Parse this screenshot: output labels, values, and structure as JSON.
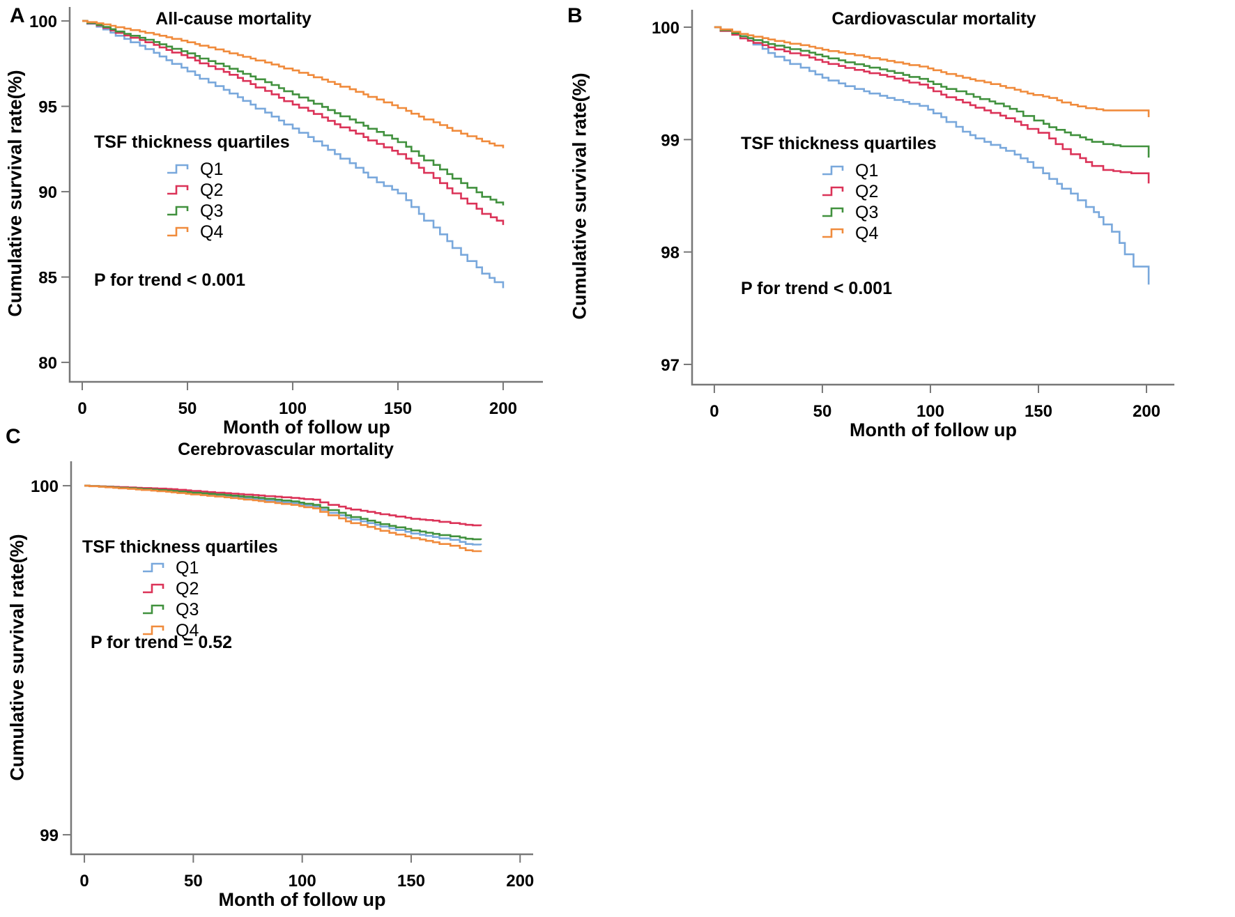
{
  "figure": {
    "background": "#ffffff",
    "axis_color": "#777777",
    "text_color": "#000000"
  },
  "chart_data": [
    {
      "panel_label": "A",
      "type": "line",
      "step": true,
      "title": "All-cause mortality",
      "xlabel": "Month of follow up",
      "ylabel": "Cumulative survival rate(%)",
      "legend_title": "TSF thickness quartiles",
      "legend_position": "center-left",
      "p_text": "P for trend < 0.001",
      "grid": false,
      "xlim": [
        -5.96,
        218.9
      ],
      "xticks": [
        0,
        50,
        100,
        150,
        200
      ],
      "ylim": [
        78.86,
        100.82
      ],
      "yticks": [
        80,
        85,
        90,
        95,
        100
      ],
      "series": [
        {
          "name": "Q1",
          "color": "#79A8DC",
          "points": [
            [
              0,
              100
            ],
            [
              10,
              99.5
            ],
            [
              20,
              98.95
            ],
            [
              30,
              98.35
            ],
            [
              40,
              97.7
            ],
            [
              50,
              97.05
            ],
            [
              60,
              96.4
            ],
            [
              70,
              95.75
            ],
            [
              80,
              95.1
            ],
            [
              90,
              94.4
            ],
            [
              100,
              93.7
            ],
            [
              110,
              92.95
            ],
            [
              120,
              92.2
            ],
            [
              130,
              91.4
            ],
            [
              140,
              90.55
            ],
            [
              150,
              89.9
            ],
            [
              160,
              88.7
            ],
            [
              170,
              87.5
            ],
            [
              180,
              86.3
            ],
            [
              190,
              85.2
            ],
            [
              196,
              84.7
            ],
            [
              200,
              84.35
            ]
          ]
        },
        {
          "name": "Q2",
          "color": "#DB3358",
          "points": [
            [
              0,
              100
            ],
            [
              10,
              99.6
            ],
            [
              20,
              99.15
            ],
            [
              30,
              98.75
            ],
            [
              40,
              98.3
            ],
            [
              50,
              97.85
            ],
            [
              60,
              97.35
            ],
            [
              70,
              96.85
            ],
            [
              80,
              96.3
            ],
            [
              90,
              95.7
            ],
            [
              100,
              95.1
            ],
            [
              110,
              94.55
            ],
            [
              120,
              93.95
            ],
            [
              130,
              93.4
            ],
            [
              140,
              92.8
            ],
            [
              150,
              92.2
            ],
            [
              160,
              91.4
            ],
            [
              170,
              90.5
            ],
            [
              180,
              89.6
            ],
            [
              190,
              88.7
            ],
            [
              197,
              88.3
            ],
            [
              199,
              88.3
            ],
            [
              200,
              88.05
            ]
          ]
        },
        {
          "name": "Q3",
          "color": "#41913E",
          "points": [
            [
              0,
              100
            ],
            [
              10,
              99.65
            ],
            [
              20,
              99.25
            ],
            [
              30,
              98.9
            ],
            [
              40,
              98.5
            ],
            [
              50,
              98.1
            ],
            [
              60,
              97.65
            ],
            [
              70,
              97.2
            ],
            [
              80,
              96.75
            ],
            [
              90,
              96.25
            ],
            [
              100,
              95.7
            ],
            [
              110,
              95.15
            ],
            [
              120,
              94.6
            ],
            [
              130,
              94.05
            ],
            [
              140,
              93.5
            ],
            [
              150,
              92.9
            ],
            [
              160,
              92.1
            ],
            [
              170,
              91.3
            ],
            [
              180,
              90.5
            ],
            [
              190,
              89.7
            ],
            [
              200,
              89.2
            ]
          ]
        },
        {
          "name": "Q4",
          "color": "#F08B3C",
          "points": [
            [
              0,
              100
            ],
            [
              10,
              99.8
            ],
            [
              20,
              99.55
            ],
            [
              30,
              99.3
            ],
            [
              40,
              99.05
            ],
            [
              50,
              98.75
            ],
            [
              60,
              98.45
            ],
            [
              70,
              98.1
            ],
            [
              80,
              97.8
            ],
            [
              90,
              97.45
            ],
            [
              100,
              97.1
            ],
            [
              110,
              96.7
            ],
            [
              120,
              96.3
            ],
            [
              130,
              95.85
            ],
            [
              140,
              95.4
            ],
            [
              150,
              94.9
            ],
            [
              160,
              94.4
            ],
            [
              170,
              93.9
            ],
            [
              180,
              93.4
            ],
            [
              190,
              92.95
            ],
            [
              196,
              92.7
            ],
            [
              200,
              92.55
            ]
          ]
        }
      ]
    },
    {
      "panel_label": "B",
      "type": "line",
      "step": true,
      "title": "Cardiovascular mortality",
      "xlabel": "Month of follow up",
      "ylabel": "Cumulative survival rate(%)",
      "legend_title": "TSF thickness quartiles",
      "legend_position": "center-left",
      "p_text": "P for trend < 0.001",
      "grid": false,
      "xlim": [
        -10.3,
        212.9
      ],
      "xticks": [
        0,
        50,
        100,
        150,
        200
      ],
      "ylim": [
        96.82,
        100.155
      ],
      "yticks": [
        97,
        98,
        99,
        100
      ],
      "series": [
        {
          "name": "Q1",
          "color": "#79A8DC",
          "points": [
            [
              0,
              100
            ],
            [
              12,
              99.92
            ],
            [
              25,
              99.77
            ],
            [
              40,
              99.64
            ],
            [
              50,
              99.55
            ],
            [
              65,
              99.45
            ],
            [
              80,
              99.37
            ],
            [
              95,
              99.3
            ],
            [
              105,
              99.2
            ],
            [
              115,
              99.07
            ],
            [
              125,
              98.98
            ],
            [
              135,
              98.9
            ],
            [
              145,
              98.8
            ],
            [
              155,
              98.65
            ],
            [
              165,
              98.52
            ],
            [
              172,
              98.4
            ],
            [
              178,
              98.31
            ],
            [
              184,
              98.18
            ],
            [
              190,
              97.98
            ],
            [
              194,
              97.87
            ],
            [
              200,
              97.87
            ],
            [
              201,
              97.71
            ]
          ]
        },
        {
          "name": "Q2",
          "color": "#DB3358",
          "points": [
            [
              0,
              100
            ],
            [
              12,
              99.9
            ],
            [
              25,
              99.82
            ],
            [
              40,
              99.75
            ],
            [
              50,
              99.69
            ],
            [
              65,
              99.62
            ],
            [
              80,
              99.56
            ],
            [
              95,
              99.49
            ],
            [
              105,
              99.4
            ],
            [
              115,
              99.33
            ],
            [
              125,
              99.26
            ],
            [
              135,
              99.19
            ],
            [
              142,
              99.13
            ],
            [
              150,
              99.06
            ],
            [
              158,
              98.96
            ],
            [
              165,
              98.87
            ],
            [
              172,
              98.8
            ],
            [
              180,
              98.73
            ],
            [
              188,
              98.71
            ],
            [
              193,
              98.7
            ],
            [
              200,
              98.7
            ],
            [
              201,
              98.61
            ]
          ]
        },
        {
          "name": "Q3",
          "color": "#41913E",
          "points": [
            [
              0,
              100
            ],
            [
              12,
              99.92
            ],
            [
              25,
              99.85
            ],
            [
              40,
              99.79
            ],
            [
              50,
              99.74
            ],
            [
              65,
              99.67
            ],
            [
              80,
              99.61
            ],
            [
              95,
              99.54
            ],
            [
              105,
              99.47
            ],
            [
              112,
              99.43
            ],
            [
              120,
              99.38
            ],
            [
              130,
              99.32
            ],
            [
              140,
              99.25
            ],
            [
              148,
              99.17
            ],
            [
              155,
              99.11
            ],
            [
              165,
              99.04
            ],
            [
              172,
              99.0
            ],
            [
              180,
              98.96
            ],
            [
              188,
              98.94
            ],
            [
              200,
              98.94
            ],
            [
              201,
              98.84
            ]
          ]
        },
        {
          "name": "Q4",
          "color": "#F08B3C",
          "points": [
            [
              0,
              100
            ],
            [
              12,
              99.94
            ],
            [
              25,
              99.89
            ],
            [
              40,
              99.84
            ],
            [
              50,
              99.8
            ],
            [
              65,
              99.75
            ],
            [
              80,
              99.7
            ],
            [
              95,
              99.65
            ],
            [
              105,
              99.6
            ],
            [
              115,
              99.55
            ],
            [
              125,
              99.51
            ],
            [
              135,
              99.46
            ],
            [
              145,
              99.41
            ],
            [
              155,
              99.37
            ],
            [
              165,
              99.31
            ],
            [
              172,
              99.28
            ],
            [
              180,
              99.26
            ],
            [
              188,
              99.26
            ],
            [
              200,
              99.26
            ],
            [
              201,
              99.2
            ]
          ]
        }
      ]
    },
    {
      "panel_label": "C",
      "type": "line",
      "step": true,
      "title": "Cerebrovascular mortality",
      "xlabel": "Month of follow up",
      "ylabel": "Cumulative survival rate(%)",
      "legend_title": "TSF thickness quartiles",
      "legend_position": "center-left",
      "p_text": "P for trend = 0.52",
      "grid": false,
      "xlim": [
        -6.1,
        206.0
      ],
      "xticks": [
        0,
        50,
        100,
        150,
        200
      ],
      "ylim": [
        98.944,
        100.07
      ],
      "yticks": [
        99,
        100
      ],
      "series": [
        {
          "name": "Q1",
          "color": "#79A8DC",
          "points": [
            [
              0,
              100
            ],
            [
              20,
              99.992
            ],
            [
              40,
              99.983
            ],
            [
              60,
              99.972
            ],
            [
              80,
              99.96
            ],
            [
              95,
              99.95
            ],
            [
              105,
              99.94
            ],
            [
              112,
              99.922
            ],
            [
              120,
              99.908
            ],
            [
              130,
              99.893
            ],
            [
              140,
              99.878
            ],
            [
              150,
              99.863
            ],
            [
              160,
              99.853
            ],
            [
              168,
              99.845
            ],
            [
              175,
              99.833
            ],
            [
              182,
              99.83
            ]
          ]
        },
        {
          "name": "Q2",
          "color": "#DB3358",
          "points": [
            [
              0,
              100
            ],
            [
              20,
              99.995
            ],
            [
              40,
              99.99
            ],
            [
              60,
              99.98
            ],
            [
              80,
              99.972
            ],
            [
              95,
              99.965
            ],
            [
              105,
              99.96
            ],
            [
              112,
              99.945
            ],
            [
              120,
              99.935
            ],
            [
              130,
              99.925
            ],
            [
              140,
              99.915
            ],
            [
              150,
              99.905
            ],
            [
              160,
              99.9
            ],
            [
              168,
              99.893
            ],
            [
              175,
              99.888
            ],
            [
              182,
              99.885
            ]
          ]
        },
        {
          "name": "Q3",
          "color": "#41913E",
          "points": [
            [
              0,
              100
            ],
            [
              20,
              99.993
            ],
            [
              40,
              99.985
            ],
            [
              60,
              99.975
            ],
            [
              80,
              99.965
            ],
            [
              95,
              99.955
            ],
            [
              105,
              99.945
            ],
            [
              112,
              99.93
            ],
            [
              120,
              99.915
            ],
            [
              130,
              99.9
            ],
            [
              140,
              99.885
            ],
            [
              150,
              99.872
            ],
            [
              160,
              99.862
            ],
            [
              168,
              99.855
            ],
            [
              175,
              99.848
            ],
            [
              182,
              99.845
            ]
          ]
        },
        {
          "name": "Q4",
          "color": "#F08B3C",
          "points": [
            [
              0,
              100
            ],
            [
              20,
              99.991
            ],
            [
              40,
              99.981
            ],
            [
              60,
              99.969
            ],
            [
              80,
              99.956
            ],
            [
              95,
              99.945
            ],
            [
              105,
              99.935
            ],
            [
              112,
              99.915
            ],
            [
              120,
              99.898
            ],
            [
              130,
              99.882
            ],
            [
              140,
              99.865
            ],
            [
              150,
              99.85
            ],
            [
              160,
              99.838
            ],
            [
              168,
              99.828
            ],
            [
              175,
              99.815
            ],
            [
              182,
              99.81
            ]
          ]
        }
      ]
    }
  ]
}
